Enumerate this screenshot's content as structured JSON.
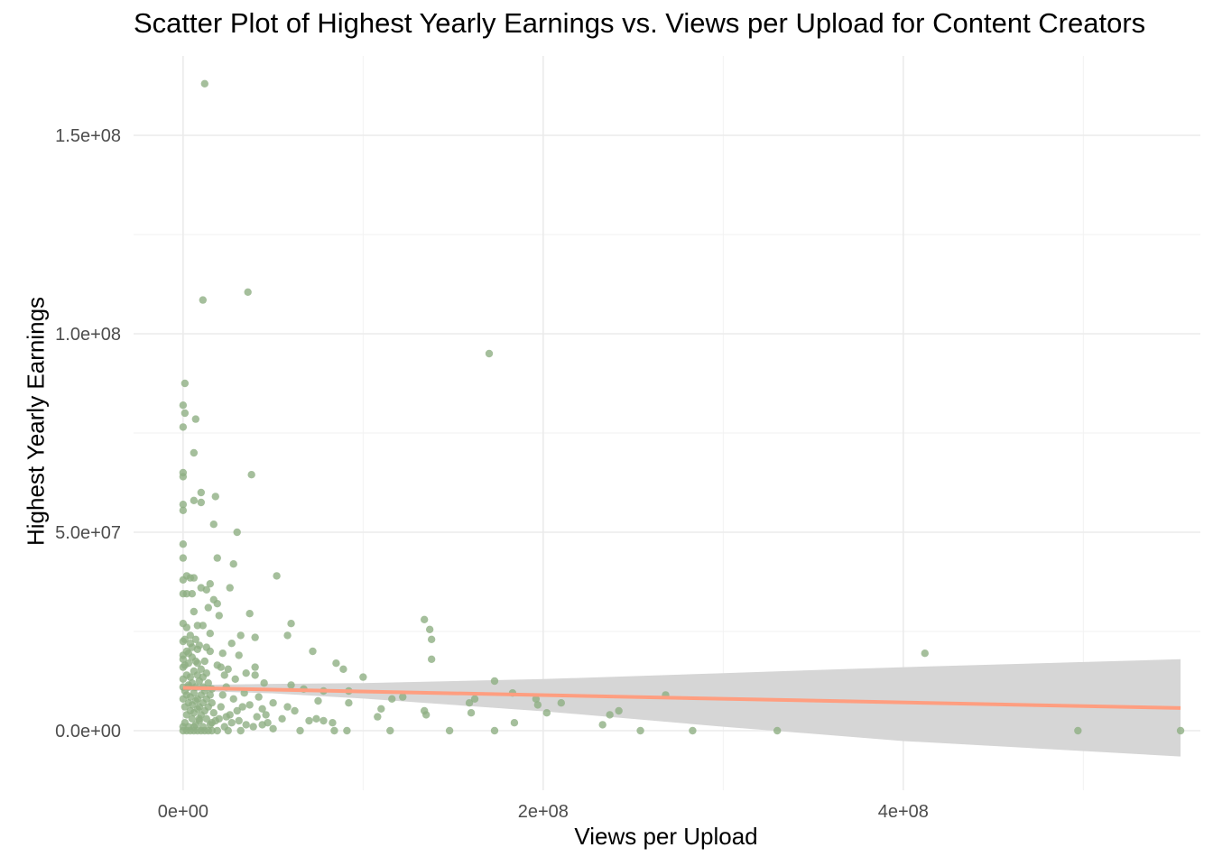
{
  "chart_data": {
    "type": "scatter",
    "title": "Scatter Plot of Highest Yearly Earnings vs. Views per Upload for Content Creators",
    "xlabel": "Views per Upload",
    "ylabel": "Highest Yearly Earnings",
    "xlim": [
      -27500000.0,
      565000000.0
    ],
    "ylim": [
      -15000000.0,
      170000000.0
    ],
    "x_ticks": [
      {
        "value": 0,
        "label": "0e+00"
      },
      {
        "value": 200000000,
        "label": "2e+08"
      },
      {
        "value": 400000000,
        "label": "4e+08"
      }
    ],
    "y_ticks": [
      {
        "value": 0,
        "label": "0.0e+00"
      },
      {
        "value": 50000000,
        "label": "5.0e+07"
      },
      {
        "value": 100000000,
        "label": "1.0e+08"
      },
      {
        "value": 150000000,
        "label": "1.5e+08"
      }
    ],
    "grid": true,
    "point_color": "#8FAF83",
    "trend_color": "#FF9E80",
    "band_color": "#D6D6D6",
    "points": [
      [
        12000000.0,
        163000000.0
      ],
      [
        11000000.0,
        108500000.0
      ],
      [
        36000000.0,
        110500000.0
      ],
      [
        170000000.0,
        95000000.0
      ],
      [
        1000000.0,
        87500000.0
      ],
      [
        0,
        82000000.0
      ],
      [
        1000000.0,
        80000000.0
      ],
      [
        7000000.0,
        78500000.0
      ],
      [
        0,
        76500000.0
      ],
      [
        6000000.0,
        70000000.0
      ],
      [
        0,
        65000000.0
      ],
      [
        38000000.0,
        64500000.0
      ],
      [
        0,
        64000000.0
      ],
      [
        10000000.0,
        60000000.0
      ],
      [
        18000000.0,
        59000000.0
      ],
      [
        6000000.0,
        58000000.0
      ],
      [
        0,
        57000000.0
      ],
      [
        10000000.0,
        57500000.0
      ],
      [
        0,
        55500000.0
      ],
      [
        17000000.0,
        52000000.0
      ],
      [
        30000000.0,
        50000000.0
      ],
      [
        0,
        47000000.0
      ],
      [
        0,
        43500000.0
      ],
      [
        19000000.0,
        43500000.0
      ],
      [
        28000000.0,
        42000000.0
      ],
      [
        52000000.0,
        39000000.0
      ],
      [
        2000000.0,
        39000000.0
      ],
      [
        6000000.0,
        38500000.0
      ],
      [
        4000000.0,
        38500000.0
      ],
      [
        0,
        38000000.0
      ],
      [
        15000000.0,
        37000000.0
      ],
      [
        10000000.0,
        36000000.0
      ],
      [
        13000000.0,
        35500000.0
      ],
      [
        26000000.0,
        36000000.0
      ],
      [
        0,
        34500000.0
      ],
      [
        2000000.0,
        34500000.0
      ],
      [
        5000000.0,
        34500000.0
      ],
      [
        17000000.0,
        33000000.0
      ],
      [
        19000000.0,
        32000000.0
      ],
      [
        14000000.0,
        31000000.0
      ],
      [
        6000000.0,
        30000000.0
      ],
      [
        37000000.0,
        29500000.0
      ],
      [
        20000000.0,
        29000000.0
      ],
      [
        134000000.0,
        28000000.0
      ],
      [
        60000000.0,
        27000000.0
      ],
      [
        0,
        27000000.0
      ],
      [
        2000000.0,
        26000000.0
      ],
      [
        8000000.0,
        26500000.0
      ],
      [
        11000000.0,
        26500000.0
      ],
      [
        137000000.0,
        25500000.0
      ],
      [
        15000000.0,
        24500000.0
      ],
      [
        32000000.0,
        24000000.0
      ],
      [
        40000000.0,
        23500000.0
      ],
      [
        58000000.0,
        24000000.0
      ],
      [
        138000000.0,
        23000000.0
      ],
      [
        0,
        22500000.0
      ],
      [
        4000000.0,
        22000000.0
      ],
      [
        9000000.0,
        21500000.0
      ],
      [
        27000000.0,
        22000000.0
      ],
      [
        13000000.0,
        21000000.0
      ],
      [
        15000000.0,
        20000000.0
      ],
      [
        72000000.0,
        20000000.0
      ],
      [
        3000000.0,
        19500000.0
      ],
      [
        22000000.0,
        19500000.0
      ],
      [
        31000000.0,
        19000000.0
      ],
      [
        412000000.0,
        19500000.0
      ],
      [
        0,
        18000000.0
      ],
      [
        7000000.0,
        17500000.0
      ],
      [
        138000000.0,
        18000000.0
      ],
      [
        85000000.0,
        17000000.0
      ],
      [
        19000000.0,
        16500000.0
      ],
      [
        40000000.0,
        16000000.0
      ],
      [
        0,
        16000000.0
      ],
      [
        25000000.0,
        15500000.0
      ],
      [
        89000000.0,
        15500000.0
      ],
      [
        35000000.0,
        14500000.0
      ],
      [
        40000000.0,
        14000000.0
      ],
      [
        100000000.0,
        13500000.0
      ],
      [
        11000000.0,
        13500000.0
      ],
      [
        173000000.0,
        12500000.0
      ],
      [
        29000000.0,
        13000000.0
      ],
      [
        45000000.0,
        12000000.0
      ],
      [
        60000000.0,
        11500000.0
      ],
      [
        3000000.0,
        11000000.0
      ],
      [
        0,
        11000000.0
      ],
      [
        16000000.0,
        10500000.0
      ],
      [
        67000000.0,
        10500000.0
      ],
      [
        78000000.0,
        10000000.0
      ],
      [
        92000000.0,
        10000000.0
      ],
      [
        183000000.0,
        9500000.0
      ],
      [
        268000000.0,
        9000000.0
      ],
      [
        122000000.0,
        8500000.0
      ],
      [
        116000000.0,
        8000000.0
      ],
      [
        162000000.0,
        8000000.0
      ],
      [
        196000000.0,
        8000000.0
      ],
      [
        75000000.0,
        7500000.0
      ],
      [
        50000000.0,
        7000000.0
      ],
      [
        92000000.0,
        7000000.0
      ],
      [
        159000000.0,
        7000000.0
      ],
      [
        210000000.0,
        7000000.0
      ],
      [
        197000000.0,
        6500000.0
      ],
      [
        33000000.0,
        6000000.0
      ],
      [
        58000000.0,
        6000000.0
      ],
      [
        44000000.0,
        5500000.0
      ],
      [
        110000000.0,
        5500000.0
      ],
      [
        242000000.0,
        5000000.0
      ],
      [
        134000000.0,
        5000000.0
      ],
      [
        62000000.0,
        5000000.0
      ],
      [
        202000000.0,
        4500000.0
      ],
      [
        160000000.0,
        4500000.0
      ],
      [
        26000000.0,
        4000000.0
      ],
      [
        24000000.0,
        3500000.0
      ],
      [
        41000000.0,
        3500000.0
      ],
      [
        135000000.0,
        4000000.0
      ],
      [
        237000000.0,
        4000000.0
      ],
      [
        108000000.0,
        3500000.0
      ],
      [
        74000000.0,
        3000000.0
      ],
      [
        9000000.0,
        3000000.0
      ],
      [
        31000000.0,
        2500000.0
      ],
      [
        78000000.0,
        2500000.0
      ],
      [
        70000000.0,
        2500000.0
      ],
      [
        47000000.0,
        2000000.0
      ],
      [
        184000000.0,
        2000000.0
      ],
      [
        83000000.0,
        2000000.0
      ],
      [
        16000000.0,
        2000000.0
      ],
      [
        233000000.0,
        1500000.0
      ],
      [
        35000000.0,
        1500000.0
      ],
      [
        44000000.0,
        1500000.0
      ],
      [
        23000000.0,
        1000000.0
      ],
      [
        39000000.0,
        1000000.0
      ],
      [
        50000000.0,
        500000.0
      ],
      [
        65000000.0,
        0
      ],
      [
        84000000.0,
        0
      ],
      [
        91000000.0,
        0
      ],
      [
        115000000.0,
        0
      ],
      [
        148000000.0,
        0
      ],
      [
        173000000.0,
        0
      ],
      [
        254000000.0,
        0
      ],
      [
        283000000.0,
        0
      ],
      [
        330000000.0,
        0
      ],
      [
        497000000.0,
        0
      ],
      [
        554000000.0,
        0
      ],
      [
        25000000.0,
        0
      ],
      [
        32000000.0,
        0
      ],
      [
        0,
        0
      ],
      [
        2000000.0,
        0
      ],
      [
        4000000.0,
        0
      ],
      [
        6000000.0,
        0
      ],
      [
        8000000.0,
        0
      ],
      [
        10000000.0,
        0
      ],
      [
        12000000.0,
        0
      ],
      [
        14000000.0,
        0
      ],
      [
        16000000.0,
        0
      ],
      [
        19000000.0,
        0
      ],
      [
        0,
        1000000.0
      ],
      [
        1000000.0,
        2000000.0
      ],
      [
        3000000.0,
        1000000.0
      ],
      [
        5000000.0,
        3000000.0
      ],
      [
        7000000.0,
        1500000.0
      ],
      [
        9000000.0,
        2500000.0
      ],
      [
        11000000.0,
        1000000.0
      ],
      [
        13000000.0,
        3000000.0
      ],
      [
        15000000.0,
        1500000.0
      ],
      [
        18000000.0,
        2500000.0
      ],
      [
        2000000.0,
        4000000.0
      ],
      [
        4000000.0,
        5000000.0
      ],
      [
        6000000.0,
        4500000.0
      ],
      [
        8000000.0,
        5500000.0
      ],
      [
        10000000.0,
        4000000.0
      ],
      [
        12000000.0,
        5000000.0
      ],
      [
        14000000.0,
        6000000.0
      ],
      [
        17000000.0,
        4500000.0
      ],
      [
        1000000.0,
        6000000.0
      ],
      [
        3000000.0,
        7000000.0
      ],
      [
        5000000.0,
        6500000.0
      ],
      [
        7000000.0,
        7500000.0
      ],
      [
        9000000.0,
        6000000.0
      ],
      [
        11000000.0,
        7000000.0
      ],
      [
        13000000.0,
        8000000.0
      ],
      [
        16000000.0,
        7000000.0
      ],
      [
        0,
        8000000.0
      ],
      [
        2000000.0,
        9000000.0
      ],
      [
        4000000.0,
        8500000.0
      ],
      [
        6000000.0,
        9500000.0
      ],
      [
        8000000.0,
        8000000.0
      ],
      [
        10000000.0,
        9000000.0
      ],
      [
        12000000.0,
        10000000.0
      ],
      [
        15000000.0,
        9000000.0
      ],
      [
        1000000.0,
        10000000.0
      ],
      [
        3000000.0,
        11500000.0
      ],
      [
        5000000.0,
        12000000.0
      ],
      [
        7000000.0,
        11000000.0
      ],
      [
        9000000.0,
        12500000.0
      ],
      [
        11000000.0,
        11000000.0
      ],
      [
        14000000.0,
        12000000.0
      ],
      [
        0,
        13000000.0
      ],
      [
        2000000.0,
        14000000.0
      ],
      [
        4000000.0,
        13500000.0
      ],
      [
        6000000.0,
        15000000.0
      ],
      [
        8000000.0,
        14000000.0
      ],
      [
        10000000.0,
        15500000.0
      ],
      [
        13000000.0,
        14500000.0
      ],
      [
        1000000.0,
        16500000.0
      ],
      [
        3000000.0,
        17000000.0
      ],
      [
        5000000.0,
        18500000.0
      ],
      [
        8000000.0,
        17000000.0
      ],
      [
        12000000.0,
        17500000.0
      ],
      [
        0,
        19000000.0
      ],
      [
        2000000.0,
        20000000.0
      ],
      [
        5000000.0,
        21000000.0
      ],
      [
        8000000.0,
        20500000.0
      ],
      [
        1000000.0,
        23000000.0
      ],
      [
        4000000.0,
        24000000.0
      ],
      [
        7000000.0,
        23000000.0
      ],
      [
        20000000.0,
        3000000.0
      ],
      [
        21000000.0,
        6000000.0
      ],
      [
        22000000.0,
        9000000.0
      ],
      [
        24000000.0,
        11000000.0
      ],
      [
        23000000.0,
        14000000.0
      ],
      [
        21000000.0,
        16000000.0
      ],
      [
        28000000.0,
        8000000.0
      ],
      [
        30000000.0,
        5000000.0
      ],
      [
        27000000.0,
        2000000.0
      ],
      [
        34000000.0,
        9500000.0
      ],
      [
        42000000.0,
        8500000.0
      ],
      [
        37000000.0,
        6500000.0
      ],
      [
        46000000.0,
        4000000.0
      ],
      [
        55000000.0,
        3000000.0
      ],
      [
        6000000.0,
        1000000.0
      ]
    ],
    "trend_line": {
      "x": [
        0,
        554000000.0
      ],
      "y": [
        10800000.0,
        5700000.0
      ]
    },
    "confidence_band": {
      "x": [
        0,
        50000000.0,
        100000000.0,
        200000000.0,
        300000000.0,
        400000000.0,
        554000000.0
      ],
      "upper": [
        11500000.0,
        11800000.0,
        12000000.0,
        13000000.0,
        14500000.0,
        16000000.0,
        18000000.0
      ],
      "lower": [
        10100000.0,
        9400000.0,
        8100000.0,
        4900000.0,
        1000000.0,
        -2600000.0,
        -6500000.0
      ]
    }
  }
}
